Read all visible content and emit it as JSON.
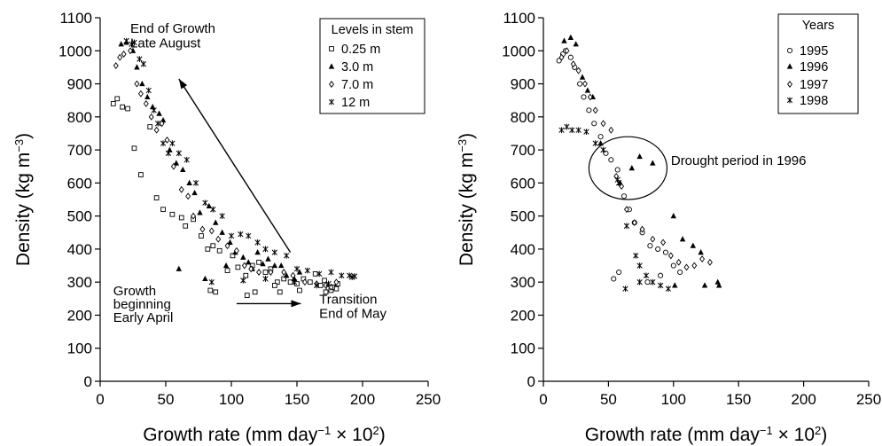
{
  "chart_data": [
    {
      "type": "scatter",
      "title": "",
      "xlabel": "Growth rate (mm day⁻¹ × 10²)",
      "ylabel": "Density (kg m⁻³)",
      "xlim": [
        0,
        250
      ],
      "ylim": [
        0,
        1100
      ],
      "x_ticks": [
        0,
        50,
        100,
        150,
        200,
        250
      ],
      "y_ticks": [
        0,
        100,
        200,
        300,
        400,
        500,
        600,
        700,
        800,
        900,
        1000,
        1100
      ],
      "grid": false,
      "legend_title": "Levels in stem",
      "legend_position": "top-right",
      "annotations": [
        {
          "text": "End of Growth",
          "x": 23,
          "y": 1055
        },
        {
          "text": "Late August",
          "x": 23,
          "y": 1010
        },
        {
          "text": "Growth",
          "x": 10,
          "y": 260
        },
        {
          "text": "beginning",
          "x": 10,
          "y": 220
        },
        {
          "text": "Early April",
          "x": 10,
          "y": 180
        },
        {
          "text": "Transition",
          "x": 167,
          "y": 235
        },
        {
          "text": "End of May",
          "x": 167,
          "y": 192
        }
      ],
      "arrows": [
        {
          "from": [
            145,
            390
          ],
          "to": [
            60,
            915
          ]
        },
        {
          "from": [
            104,
            235
          ],
          "to": [
            153,
            235
          ]
        }
      ],
      "series": [
        {
          "name": "0.25 m",
          "marker": "square",
          "points": [
            [
              10,
              840
            ],
            [
              13,
              855
            ],
            [
              17,
              830
            ],
            [
              21,
              825
            ],
            [
              26,
              705
            ],
            [
              31,
              625
            ],
            [
              38,
              770
            ],
            [
              43,
              555
            ],
            [
              48,
              520
            ],
            [
              55,
              505
            ],
            [
              62,
              495
            ],
            [
              65,
              470
            ],
            [
              71,
              490
            ],
            [
              77,
              440
            ],
            [
              82,
              400
            ],
            [
              86,
              410
            ],
            [
              91,
              395
            ],
            [
              97,
              335
            ],
            [
              101,
              380
            ],
            [
              105,
              345
            ],
            [
              111,
              320
            ],
            [
              116,
              350
            ],
            [
              121,
              360
            ],
            [
              126,
              330
            ],
            [
              130,
              340
            ],
            [
              135,
              300
            ],
            [
              140,
              310
            ],
            [
              145,
              300
            ],
            [
              150,
              295
            ],
            [
              155,
              310
            ],
            [
              160,
              300
            ],
            [
              164,
              325
            ],
            [
              168,
              290
            ],
            [
              171,
              305
            ],
            [
              174,
              280
            ],
            [
              176,
              275
            ],
            [
              178,
              285
            ],
            [
              180,
              280
            ],
            [
              84,
              275
            ],
            [
              88,
              270
            ],
            [
              112,
              260
            ],
            [
              118,
              270
            ],
            [
              133,
              290
            ],
            [
              137,
              270
            ],
            [
              152,
              275
            ],
            [
              172,
              270
            ],
            [
              177,
              285
            ],
            [
              181,
              295
            ]
          ]
        },
        {
          "name": "3.0 m",
          "marker": "triangle",
          "points": [
            [
              16,
              1020
            ],
            [
              20,
              1025
            ],
            [
              25,
              1000
            ],
            [
              28,
              950
            ],
            [
              32,
              900
            ],
            [
              36,
              860
            ],
            [
              40,
              830
            ],
            [
              45,
              810
            ],
            [
              48,
              790
            ],
            [
              53,
              700
            ],
            [
              58,
              660
            ],
            [
              60,
              340
            ],
            [
              63,
              640
            ],
            [
              68,
              600
            ],
            [
              72,
              570
            ],
            [
              76,
              510
            ],
            [
              80,
              310
            ],
            [
              83,
              530
            ],
            [
              88,
              480
            ],
            [
              93,
              450
            ],
            [
              96,
              350
            ],
            [
              99,
              420
            ],
            [
              103,
              390
            ],
            [
              109,
              375
            ],
            [
              113,
              360
            ],
            [
              116,
              340
            ],
            [
              120,
              390
            ],
            [
              124,
              355
            ],
            [
              128,
              370
            ],
            [
              133,
              350
            ],
            [
              138,
              350
            ],
            [
              142,
              320
            ],
            [
              148,
              310
            ],
            [
              152,
              330
            ]
          ]
        },
        {
          "name": "7.0 m",
          "marker": "diamond",
          "points": [
            [
              12,
              955
            ],
            [
              15,
              980
            ],
            [
              18,
              990
            ],
            [
              23,
              1000
            ],
            [
              28,
              900
            ],
            [
              31,
              870
            ],
            [
              35,
              840
            ],
            [
              39,
              800
            ],
            [
              43,
              760
            ],
            [
              47,
              780
            ],
            [
              51,
              730
            ],
            [
              56,
              650
            ],
            [
              62,
              580
            ],
            [
              67,
              560
            ],
            [
              71,
              500
            ],
            [
              78,
              460
            ],
            [
              85,
              455
            ],
            [
              90,
              430
            ],
            [
              97,
              410
            ],
            [
              104,
              395
            ],
            [
              110,
              350
            ],
            [
              115,
              340
            ],
            [
              121,
              330
            ],
            [
              130,
              330
            ],
            [
              140,
              330
            ],
            [
              147,
              320
            ],
            [
              156,
              300
            ],
            [
              165,
              295
            ],
            [
              172,
              290
            ],
            [
              176,
              285
            ],
            [
              180,
              300
            ]
          ]
        },
        {
          "name": "12 m",
          "marker": "star",
          "points": [
            [
              20,
              1030
            ],
            [
              24,
              1020
            ],
            [
              26,
              1025
            ],
            [
              30,
              975
            ],
            [
              33,
              960
            ],
            [
              37,
              880
            ],
            [
              41,
              820
            ],
            [
              44,
              780
            ],
            [
              48,
              720
            ],
            [
              52,
              690
            ],
            [
              55,
              720
            ],
            [
              60,
              690
            ],
            [
              66,
              670
            ],
            [
              73,
              600
            ],
            [
              80,
              540
            ],
            [
              86,
              520
            ],
            [
              93,
              500
            ],
            [
              100,
              440
            ],
            [
              107,
              445
            ],
            [
              113,
              440
            ],
            [
              120,
              420
            ],
            [
              126,
              400
            ],
            [
              133,
              390
            ],
            [
              142,
              380
            ],
            [
              150,
              340
            ],
            [
              158,
              335
            ],
            [
              167,
              325
            ],
            [
              176,
              330
            ],
            [
              184,
              320
            ],
            [
              190,
              320
            ],
            [
              194,
              318
            ],
            [
              192,
              315
            ],
            [
              85,
              300
            ],
            [
              109,
              305
            ],
            [
              126,
              310
            ],
            [
              148,
              300
            ],
            [
              165,
              290
            ],
            [
              174,
              295
            ]
          ]
        }
      ]
    },
    {
      "type": "scatter",
      "title": "",
      "xlabel": "Growth rate (mm day⁻¹ × 10²)",
      "ylabel": "Density (kg m⁻³)",
      "xlim": [
        0,
        250
      ],
      "ylim": [
        0,
        1100
      ],
      "x_ticks": [
        0,
        50,
        100,
        150,
        200,
        250
      ],
      "y_ticks": [
        0,
        100,
        200,
        300,
        400,
        500,
        600,
        700,
        800,
        900,
        1000,
        1100
      ],
      "grid": false,
      "legend_title": "Years",
      "legend_position": "top-right",
      "annotations": [
        {
          "text": "Drought period in 1996",
          "x": 98,
          "y": 655
        }
      ],
      "ellipses": [
        {
          "cx": 65,
          "cy": 645,
          "rx": 30,
          "ry": 95
        }
      ],
      "series": [
        {
          "name": "1995",
          "marker": "circle",
          "points": [
            [
              12,
              970
            ],
            [
              15,
              990
            ],
            [
              17,
              1000
            ],
            [
              21,
              980
            ],
            [
              24,
              950
            ],
            [
              28,
              900
            ],
            [
              31,
              860
            ],
            [
              35,
              820
            ],
            [
              39,
              780
            ],
            [
              44,
              740
            ],
            [
              48,
              690
            ],
            [
              52,
              670
            ],
            [
              57,
              640
            ],
            [
              62,
              560
            ],
            [
              66,
              520
            ],
            [
              70,
              480
            ],
            [
              76,
              450
            ],
            [
              82,
              410
            ],
            [
              88,
              400
            ],
            [
              94,
              390
            ],
            [
              100,
              350
            ],
            [
              105,
              330
            ],
            [
              54,
              310
            ],
            [
              58,
              330
            ],
            [
              80,
              300
            ],
            [
              90,
              320
            ]
          ]
        },
        {
          "name": "1996",
          "marker": "triangle",
          "points": [
            [
              16,
              1030
            ],
            [
              21,
              1040
            ],
            [
              25,
              1020
            ],
            [
              30,
              920
            ],
            [
              34,
              880
            ],
            [
              38,
              860
            ],
            [
              44,
              720
            ],
            [
              59,
              600
            ],
            [
              68,
              645
            ],
            [
              74,
              680
            ],
            [
              84,
              660
            ],
            [
              100,
              500
            ],
            [
              107,
              430
            ],
            [
              115,
              410
            ],
            [
              121,
              390
            ],
            [
              101,
              290
            ],
            [
              124,
              290
            ],
            [
              134,
              300
            ],
            [
              135,
              290
            ]
          ]
        },
        {
          "name": "1997",
          "marker": "diamond",
          "points": [
            [
              14,
              980
            ],
            [
              18,
              1000
            ],
            [
              23,
              960
            ],
            [
              27,
              940
            ],
            [
              32,
              900
            ],
            [
              36,
              860
            ],
            [
              40,
              820
            ],
            [
              46,
              780
            ],
            [
              52,
              760
            ],
            [
              56,
              620
            ],
            [
              60,
              590
            ],
            [
              64,
              520
            ],
            [
              70,
              480
            ],
            [
              76,
              460
            ],
            [
              84,
              430
            ],
            [
              92,
              420
            ],
            [
              98,
              380
            ],
            [
              104,
              360
            ],
            [
              110,
              345
            ],
            [
              116,
              350
            ],
            [
              122,
              370
            ],
            [
              128,
              360
            ]
          ]
        },
        {
          "name": "1998",
          "marker": "star",
          "points": [
            [
              14,
              760
            ],
            [
              18,
              770
            ],
            [
              22,
              760
            ],
            [
              27,
              760
            ],
            [
              33,
              755
            ],
            [
              40,
              720
            ],
            [
              46,
              700
            ],
            [
              57,
              610
            ],
            [
              64,
              470
            ],
            [
              71,
              380
            ],
            [
              74,
              350
            ],
            [
              79,
              320
            ],
            [
              84,
              300
            ],
            [
              90,
              290
            ],
            [
              96,
              280
            ],
            [
              58,
              600
            ],
            [
              74,
              300
            ],
            [
              63,
              280
            ]
          ]
        }
      ]
    }
  ]
}
